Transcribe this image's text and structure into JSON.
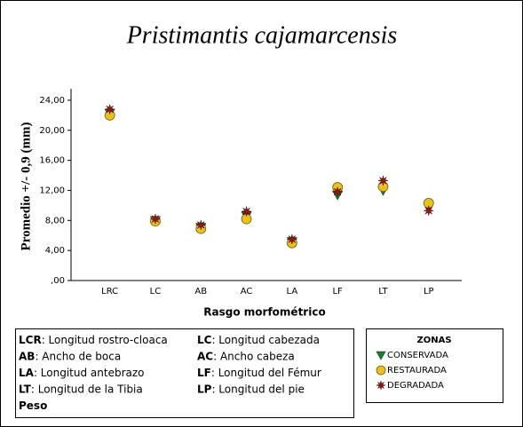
{
  "chart_data": {
    "type": "scatter",
    "title": "Pristimantis cajamarcensis",
    "y_label": "Promedio +/- 0,9 (mm)",
    "x_label": "Rasgo morfométrico",
    "categories": [
      "LRC",
      "LC",
      "AB",
      "AC",
      "LA",
      "LF",
      "LT",
      "LP"
    ],
    "ylim": [
      0,
      26
    ],
    "yticks": [
      {
        "value": 0,
        "label": ",00"
      },
      {
        "value": 4,
        "label": "4,00"
      },
      {
        "value": 8,
        "label": "8,00"
      },
      {
        "value": 12,
        "label": "12,00"
      },
      {
        "value": 16,
        "label": "16,00"
      },
      {
        "value": 20,
        "label": "20,00"
      },
      {
        "value": 24,
        "label": "24,00"
      }
    ],
    "legend_title": "ZONAS",
    "series": [
      {
        "name": "CONSERVADA",
        "color": "#1e7b3a",
        "marker": "triangle-down",
        "values": [
          22.3,
          8.0,
          7.1,
          8.6,
          5.2,
          11.4,
          12.0,
          9.8
        ]
      },
      {
        "name": "RESTAURADA",
        "color": "#e8c21e",
        "marker": "circle",
        "values": [
          22.0,
          7.9,
          6.9,
          8.2,
          5.0,
          12.4,
          12.5,
          10.3
        ]
      },
      {
        "name": "DEGRADADA",
        "color": "#8b1a1a",
        "marker": "star",
        "values": [
          22.8,
          8.2,
          7.4,
          9.2,
          5.5,
          11.8,
          13.3,
          9.3
        ]
      }
    ],
    "notes": [
      {
        "abbr": "LCR",
        "text": ": Longitud rostro-cloaca"
      },
      {
        "abbr": "LC",
        "text": ": Longitud cabezada"
      },
      {
        "abbr": "AB",
        "text": ": Ancho de boca"
      },
      {
        "abbr": "AC",
        "text": ": Ancho cabeza"
      },
      {
        "abbr": "LA",
        "text": ": Longitud antebrazo"
      },
      {
        "abbr": "LF",
        "text": ": Longitud del Fémur"
      },
      {
        "abbr": "LT",
        "text": ": Longitud de la Tibia"
      },
      {
        "abbr": "LP",
        "text": ": Longitud del pie"
      },
      {
        "abbr": "Peso"
      }
    ]
  }
}
